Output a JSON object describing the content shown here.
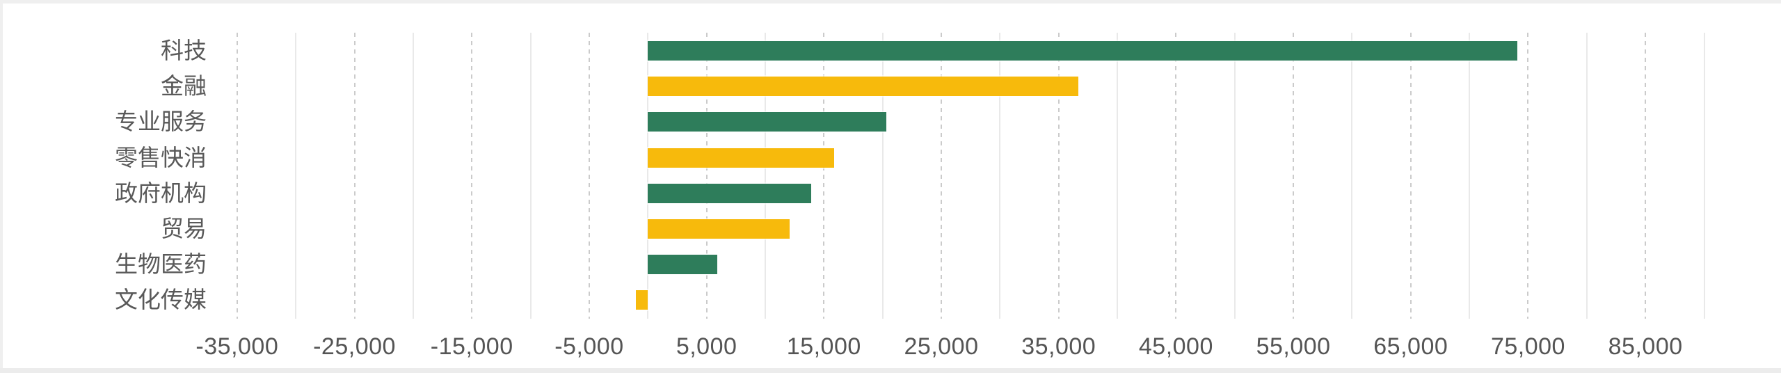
{
  "chart_data": {
    "type": "bar",
    "orientation": "horizontal",
    "title": "",
    "xlabel": "",
    "ylabel": "",
    "legend": "none",
    "grid": "vertical dashed lines at labeled ticks, light solid lines at midpoints",
    "categories": [
      "科技",
      "金融",
      "专业服务",
      "零售快消",
      "政府机构",
      "贸易",
      "生物医药",
      "文化传媒"
    ],
    "values": [
      74100,
      36700,
      20300,
      15900,
      13900,
      12100,
      5900,
      -1000
    ],
    "bar_colors": [
      "#2E7D5B",
      "#F7BA0C",
      "#2E7D5B",
      "#F7BA0C",
      "#2E7D5B",
      "#F7BA0C",
      "#2E7D5B",
      "#F7BA0C"
    ],
    "xlim": [
      -40000,
      90000
    ],
    "x_tick_step": 10000,
    "minor_grid_offset": 5000,
    "x_tick_values": [
      -35000,
      -25000,
      -15000,
      -5000,
      5000,
      15000,
      25000,
      35000,
      45000,
      55000,
      65000,
      75000,
      85000
    ],
    "x_tick_labels": [
      "-35,000",
      "-25,000",
      "-15,000",
      "-5,000",
      "5,000",
      "15,000",
      "25,000",
      "35,000",
      "45,000",
      "55,000",
      "65,000",
      "75,000",
      "85,000"
    ]
  },
  "colors": {
    "background": "#ffffff",
    "bar_green": "#2E7D5B",
    "bar_amber": "#F7BA0C",
    "grid_dashed": "#cbcbcb",
    "grid_light": "#e9e9e9",
    "axis_text": "#595959"
  }
}
